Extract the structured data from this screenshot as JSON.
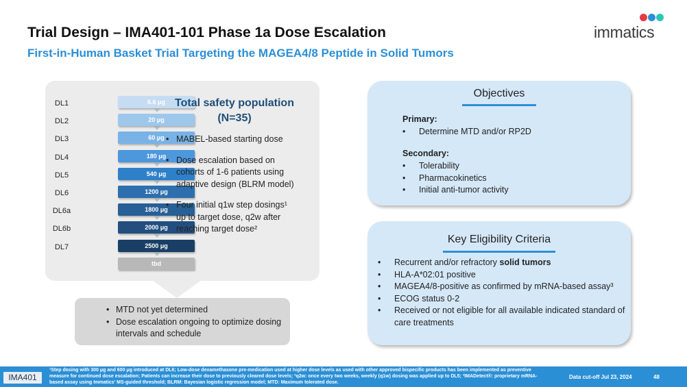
{
  "header": {
    "title": "Trial Design – IMA401-101 Phase 1a Dose Escalation",
    "subtitle": "First-in-Human Basket Trial Targeting the MAGEA4/8 Peptide in Solid Tumors"
  },
  "logo": {
    "text": "immatics",
    "dot_colors": [
      "#e63946",
      "#2b8fd6",
      "#2ec4b6"
    ]
  },
  "dose_levels": [
    {
      "label": "DL1",
      "dose": "6.6 μg",
      "color": "#c5dcf2"
    },
    {
      "label": "DL2",
      "dose": "20 μg",
      "color": "#9ec7ec"
    },
    {
      "label": "DL3",
      "dose": "60 μg",
      "color": "#79b2e6"
    },
    {
      "label": "DL4",
      "dose": "180 μg",
      "color": "#4d97dc"
    },
    {
      "label": "DL5",
      "dose": "540 μg",
      "color": "#2e80c9"
    },
    {
      "label": "DL6",
      "dose": "1200 μg",
      "color": "#2d6fae"
    },
    {
      "label": "DL6a",
      "dose": "1800 μg",
      "color": "#285f96"
    },
    {
      "label": "DL6b",
      "dose": "2000 μg",
      "color": "#224f7e"
    },
    {
      "label": "DL7",
      "dose": "2500 μg",
      "color": "#1a3f66"
    },
    {
      "label": "",
      "dose": "tbd",
      "color": "#b8b8b8"
    }
  ],
  "safety": {
    "title_line1": "Total safety population",
    "title_line2": "(N=35)",
    "bullets": [
      "MABEL-based starting dose",
      "Dose escalation based on cohorts of 1-6 patients using adaptive design (BLRM model)",
      "Four initial q1w step dosings¹ up to target dose, q2w after reaching target dose²"
    ]
  },
  "status": {
    "bullets": [
      "MTD not yet determined",
      "Dose escalation ongoing to optimize dosing intervals and schedule"
    ]
  },
  "objectives": {
    "title": "Objectives",
    "primary_heading": "Primary:",
    "primary": [
      "Determine MTD and/or RP2D"
    ],
    "secondary_heading": "Secondary:",
    "secondary": [
      "Tolerability",
      "Pharmacokinetics",
      "Initial anti-tumor activity"
    ]
  },
  "eligibility": {
    "title": "Key Eligibility Criteria",
    "criteria_1_prefix": "Recurrent and/or refractory ",
    "criteria_1_bold": "solid tumors",
    "criteria": [
      "HLA-A*02:01 positive",
      "MAGEA4/8-positive as confirmed by mRNA-based assay³",
      "ECOG status 0-2",
      "Received or not eligible for all available indicated standard of care treatments"
    ]
  },
  "footer": {
    "tag": "IMA401",
    "footnote": "¹Step dosing with 300 μg and 600 μg introduced at DL6; Low-dose dexamethasone pre-medication used at higher dose levels as used with other approved bispecific products has been implemented as preventive measure for continued dose escalation; Patients can increase their dose to previously cleared dose levels; ²q2w: once every two weeks, weekly (q1w) dosing was applied up to DL5; ³IMADetect®: proprietary mRNA-based assay using Immatics' MS-guided threshold; BLRM: Bayesian logistic regression model; MTD: Maximum tolerated dose.",
    "cutoff": "Data cut-off Jul 23, 2024",
    "page": "48"
  }
}
